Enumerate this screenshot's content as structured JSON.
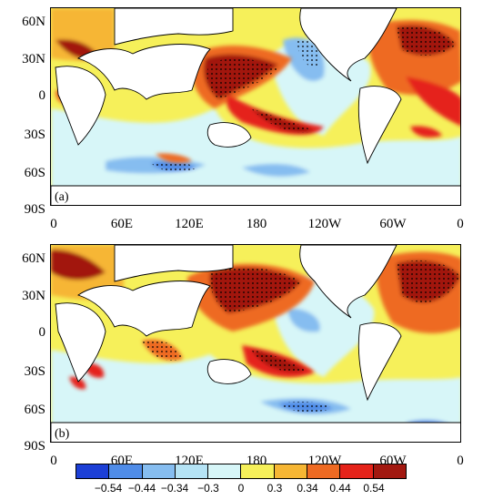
{
  "panels": [
    {
      "label": "(a)"
    },
    {
      "label": "(b)"
    }
  ],
  "lat_labels": [
    "60N",
    "30N",
    "0",
    "30S",
    "60S",
    "90S"
  ],
  "lon_labels": [
    "0",
    "60E",
    "120E",
    "180",
    "120W",
    "60W",
    "0"
  ],
  "colorbar": {
    "labels": [
      "−0.54",
      "−0.44",
      "−0.34",
      "−0.3",
      "0",
      "0.3",
      "0.34",
      "0.44",
      "0.54"
    ],
    "colors": [
      "#1c3fd6",
      "#4f8ce8",
      "#86bdf0",
      "#b5e3f5",
      "#d7f6f8",
      "#f6f05a",
      "#f6b634",
      "#ee6a22",
      "#e5231a",
      "#a21810"
    ]
  }
}
